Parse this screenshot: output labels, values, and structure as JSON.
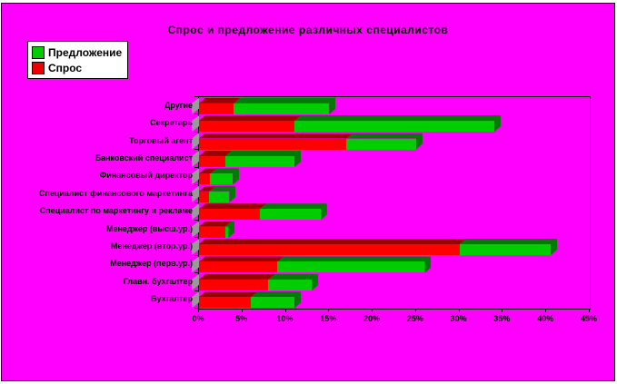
{
  "title": "Спрос и предложение различных специалистов",
  "background_color": "#FF00FF",
  "legend": {
    "items": [
      {
        "label": "Предложение",
        "color": "#00CC00"
      },
      {
        "label": "Спрос",
        "color": "#EE0000"
      }
    ]
  },
  "chart_data": {
    "type": "bar",
    "orientation": "horizontal",
    "stacked": true,
    "title": "Спрос и предложение различных специалистов",
    "categories": [
      "Другие",
      "Секретарь",
      "Торговый агент",
      "Банковский специалист",
      "Финансовый директор",
      "Специалист финансового маркетинга",
      "Специалист по маркетингу и рекламе",
      "Менеджер (высш.ур.)",
      "Менеджер (втор.ур.)",
      "Менеджер (перв.ур.)",
      "Главн. бухгалтер",
      "Бухгалтер"
    ],
    "series": [
      {
        "name": "Спрос",
        "color": "#FF0000",
        "dark_color": "#990000",
        "values": [
          4,
          11,
          17,
          3,
          1.3,
          1.2,
          7,
          3,
          30,
          9,
          8,
          6
        ]
      },
      {
        "name": "Предложение",
        "color": "#00CE00",
        "dark_color": "#007A00",
        "values": [
          11,
          23,
          8,
          8,
          2.6,
          2.3,
          7,
          0.4,
          10.5,
          17,
          5,
          5
        ]
      }
    ],
    "xlabel": "",
    "ylabel": "",
    "xlim": [
      0,
      45
    ],
    "x_tick_step": 5,
    "x_tick_labels": [
      "0%",
      "5%",
      "10%",
      "15%",
      "20%",
      "25%",
      "30%",
      "35%",
      "40%",
      "45%"
    ],
    "grid": false,
    "legend_position": "top-left",
    "plot_background": "#FF00FF"
  }
}
